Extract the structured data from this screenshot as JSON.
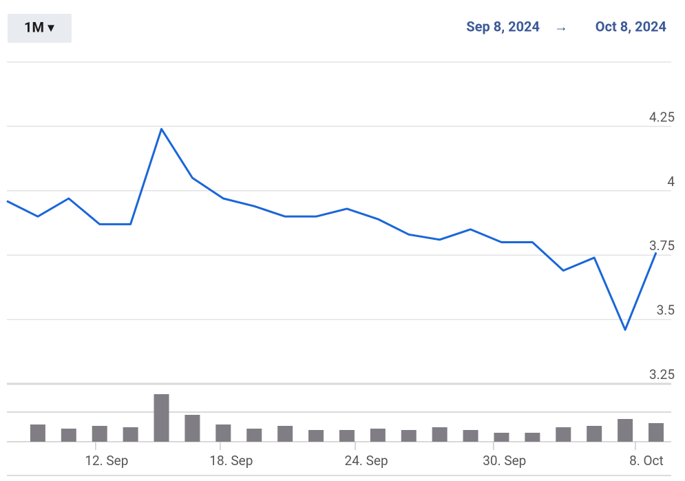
{
  "range_button": "1M ▾",
  "date_from": "Sep 8, 2024",
  "arrow": "→",
  "date_to": "Oct 8, 2024",
  "chart_data": {
    "type": "line",
    "x": [
      0,
      1,
      2,
      3,
      4,
      5,
      6,
      7,
      8,
      9,
      10,
      11,
      12,
      13,
      14,
      15,
      16,
      17,
      18,
      19,
      20,
      21
    ],
    "xlim": [
      0,
      21
    ],
    "xticks": [
      {
        "value": 2.87,
        "label": "12. Sep"
      },
      {
        "value": 6.9,
        "label": "18. Sep"
      },
      {
        "value": 11.27,
        "label": "24. Sep"
      },
      {
        "value": 15.74,
        "label": "30. Sep"
      },
      {
        "value": 20.33,
        "label": "8. Oct"
      }
    ],
    "ylim": [
      3.25,
      4.5
    ],
    "yticks": [
      3.25,
      3.5,
      3.75,
      4,
      4.25
    ],
    "y2lim": [
      0,
      84
    ],
    "grid": true,
    "series": [
      {
        "name": "price",
        "color": "#1a66d9",
        "values": [
          3.96,
          3.9,
          3.97,
          3.87,
          3.87,
          4.24,
          4.05,
          3.97,
          3.94,
          3.9,
          3.9,
          3.93,
          3.89,
          3.83,
          3.81,
          3.85,
          3.8,
          3.8,
          3.69,
          3.74,
          3.46,
          3.76
        ]
      },
      {
        "name": "volume",
        "color": "#807e84",
        "axis": "y2",
        "values": [
          null,
          25,
          19,
          23,
          21,
          69,
          39,
          25,
          19,
          23,
          17,
          17,
          19,
          17,
          21,
          17,
          13,
          13,
          21,
          23,
          33,
          27
        ]
      }
    ]
  }
}
